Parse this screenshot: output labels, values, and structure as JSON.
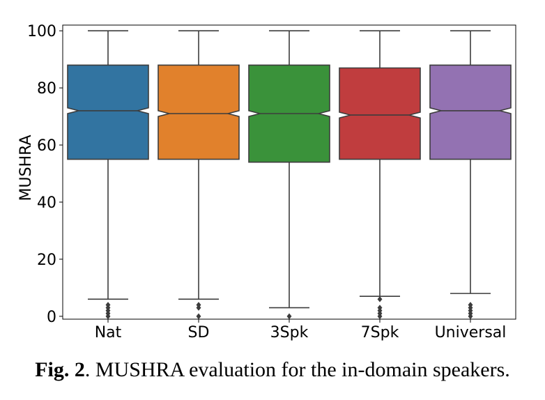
{
  "chart_data": {
    "type": "boxplot",
    "notched": true,
    "ylabel": "MUSHRA",
    "ylim": [
      0,
      100
    ],
    "yticks": [
      0,
      20,
      40,
      60,
      80,
      100
    ],
    "grid": false,
    "categories": [
      "Nat",
      "SD",
      "3Spk",
      "7Spk",
      "Universal"
    ],
    "series": [
      {
        "category": "Nat",
        "color": "#3274a1",
        "whisker_low": 6,
        "q1": 55,
        "median": 72,
        "q3": 88,
        "notch_low": 71,
        "notch_high": 73,
        "whisker_high": 100,
        "outliers": [
          0,
          1,
          2,
          3,
          4
        ]
      },
      {
        "category": "SD",
        "color": "#e1812c",
        "whisker_low": 6,
        "q1": 55,
        "median": 71,
        "q3": 88,
        "notch_low": 70,
        "notch_high": 72,
        "whisker_high": 100,
        "outliers": [
          0,
          3,
          4
        ]
      },
      {
        "category": "3Spk",
        "color": "#3a923a",
        "whisker_low": 3,
        "q1": 54,
        "median": 71,
        "q3": 88,
        "notch_low": 70,
        "notch_high": 72,
        "whisker_high": 100,
        "outliers": [
          0
        ]
      },
      {
        "category": "7Spk",
        "color": "#c03d3e",
        "whisker_low": 7,
        "q1": 55,
        "median": 70.5,
        "q3": 87,
        "notch_low": 69.5,
        "notch_high": 71.5,
        "whisker_high": 100,
        "outliers": [
          0,
          1,
          2,
          3,
          6
        ]
      },
      {
        "category": "Universal",
        "color": "#9372b2",
        "whisker_low": 8,
        "q1": 55,
        "median": 72,
        "q3": 88,
        "notch_low": 71,
        "notch_high": 73,
        "whisker_high": 100,
        "outliers": [
          0,
          1,
          2,
          3,
          4
        ]
      }
    ]
  },
  "caption": {
    "label": "Fig. 2",
    "text": ". MUSHRA evaluation for the in-domain speakers."
  }
}
